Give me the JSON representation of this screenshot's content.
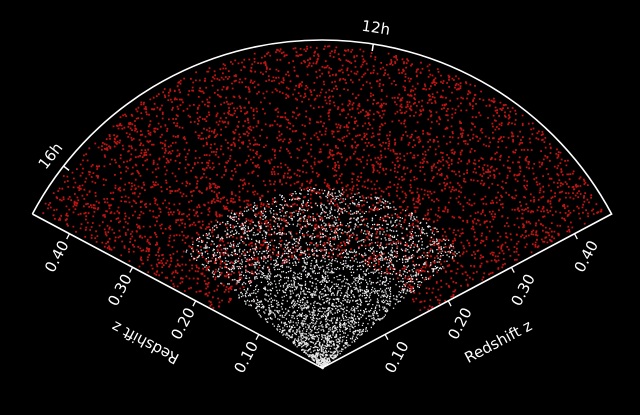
{
  "hour_labels": [
    "12h",
    "16h"
  ],
  "left_axis": {
    "label": "Redshift z",
    "ticks": [
      "0.10",
      "0.20",
      "0.30",
      "0.40"
    ]
  },
  "right_axis": {
    "label": "Redshift z",
    "ticks": [
      "0.10",
      "0.20",
      "0.30",
      "0.40"
    ]
  }
}
